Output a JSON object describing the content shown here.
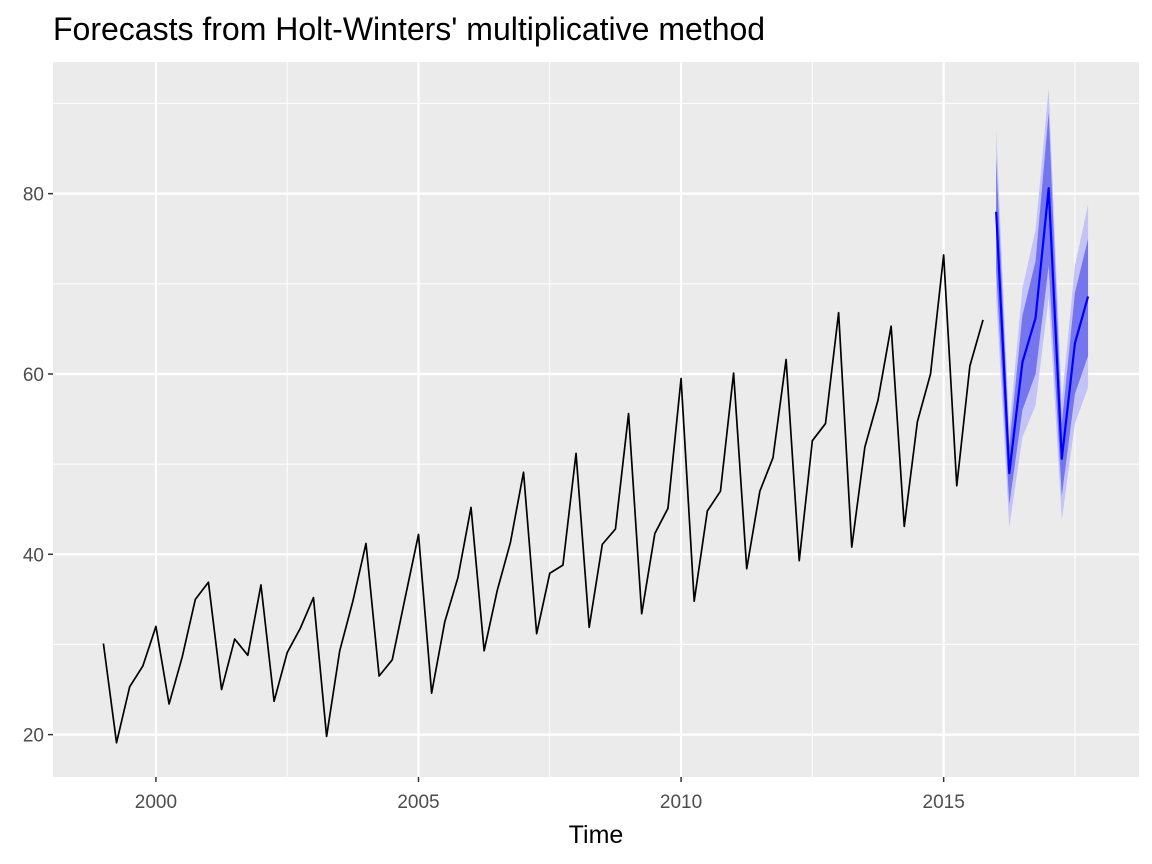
{
  "chart_data": {
    "type": "line",
    "title": "Forecasts from Holt-Winters' multiplicative method",
    "xlabel": "Time",
    "ylabel": "",
    "xlim": [
      1998.04,
      2018.72
    ],
    "ylim": [
      15.3,
      94.6
    ],
    "x_ticks": [
      2000,
      2005,
      2010,
      2015
    ],
    "y_ticks": [
      20,
      40,
      60,
      80
    ],
    "grid": true,
    "legend": "none",
    "colors": {
      "panel": "#ebebeb",
      "grid": "#ffffff",
      "observed": "#000000",
      "forecast": "#0000ff",
      "band80": "#7575ee",
      "band95": "#c3c3f7"
    },
    "series": [
      {
        "kind": "observed",
        "x": [
          1999.0,
          1999.25,
          1999.5,
          1999.75,
          2000.0,
          2000.25,
          2000.5,
          2000.75,
          2001.0,
          2001.25,
          2001.5,
          2001.75,
          2002.0,
          2002.25,
          2002.5,
          2002.75,
          2003.0,
          2003.25,
          2003.5,
          2003.75,
          2004.0,
          2004.25,
          2004.5,
          2004.75,
          2005.0,
          2005.25,
          2005.5,
          2005.75,
          2006.0,
          2006.25,
          2006.5,
          2006.75,
          2007.0,
          2007.25,
          2007.5,
          2007.75,
          2008.0,
          2008.25,
          2008.5,
          2008.75,
          2009.0,
          2009.25,
          2009.5,
          2009.75,
          2010.0,
          2010.25,
          2010.5,
          2010.75,
          2011.0,
          2011.25,
          2011.5,
          2011.75,
          2012.0,
          2012.25,
          2012.5,
          2012.75,
          2013.0,
          2013.25,
          2013.5,
          2013.75,
          2014.0,
          2014.25,
          2014.5,
          2014.75,
          2015.0,
          2015.25,
          2015.5,
          2015.75
        ],
        "y": [
          30.1,
          19.1,
          25.3,
          27.6,
          32.0,
          23.4,
          28.6,
          35.0,
          36.9,
          25.0,
          30.6,
          28.8,
          36.6,
          23.7,
          29.1,
          31.8,
          35.2,
          19.8,
          29.3,
          34.8,
          41.2,
          26.5,
          28.3,
          35.3,
          42.2,
          24.6,
          32.5,
          37.4,
          45.2,
          29.3,
          36.0,
          41.3,
          49.1,
          31.2,
          37.9,
          38.8,
          51.2,
          31.9,
          41.1,
          42.8,
          55.6,
          33.4,
          42.3,
          45.1,
          59.5,
          34.8,
          44.8,
          47.0,
          60.1,
          38.4,
          47.0,
          50.7,
          61.6,
          39.3,
          52.6,
          54.5,
          66.8,
          40.8,
          51.9,
          57.1,
          65.3,
          43.1,
          54.7,
          60.0,
          73.2,
          47.6,
          60.9,
          66.0
        ]
      },
      {
        "kind": "forecast",
        "x": [
          2016.0,
          2016.25,
          2016.5,
          2016.75,
          2017.0,
          2017.25,
          2017.5,
          2017.75
        ],
        "y": [
          78.0,
          49.0,
          61.3,
          66.2,
          80.6,
          50.6,
          63.4,
          68.6
        ],
        "lo80": [
          71.5,
          45.5,
          56.0,
          60.0,
          72.0,
          46.5,
          57.8,
          62.0
        ],
        "hi80": [
          84.0,
          52.0,
          66.5,
          72.5,
          89.0,
          54.5,
          69.0,
          75.0
        ],
        "lo95": [
          68.5,
          43.0,
          53.0,
          56.5,
          68.5,
          43.8,
          54.5,
          58.5
        ],
        "hi95": [
          87.2,
          54.0,
          69.5,
          76.0,
          91.7,
          57.0,
          72.0,
          78.8
        ]
      }
    ]
  }
}
